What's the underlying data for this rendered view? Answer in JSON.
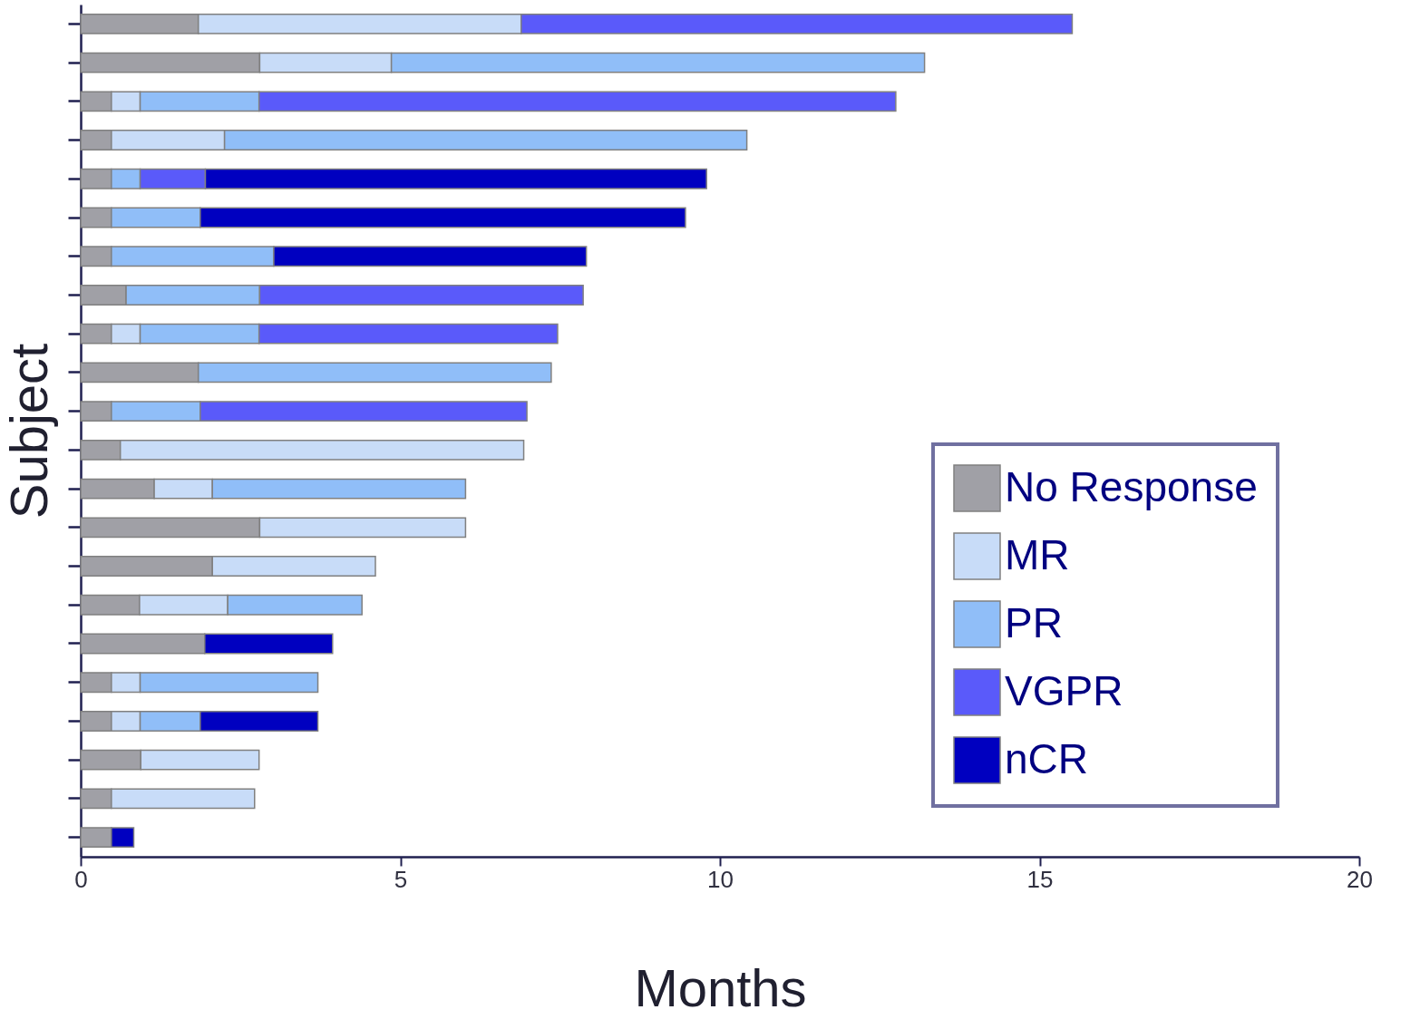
{
  "chart_data": {
    "type": "bar",
    "orientation": "horizontal",
    "stacked": true,
    "xlabel": "Months",
    "ylabel": "Subject",
    "categories": [
      null,
      null,
      null,
      null,
      null,
      null,
      null,
      null,
      null,
      null,
      null,
      null,
      null,
      null,
      null,
      null,
      null,
      null,
      null,
      null,
      null,
      null
    ],
    "series": [
      {
        "name": "No Response",
        "color": "#a0a0a6",
        "values": [
          1.84,
          2.8,
          0.48,
          0.48,
          0.48,
          0.48,
          0.48,
          0.71,
          0.48,
          1.84,
          0.48,
          0.62,
          1.15,
          2.8,
          2.06,
          0.92,
          1.94,
          0.48,
          0.48,
          0.94,
          0.48,
          0.48
        ]
      },
      {
        "name": "MR",
        "color": "#c8dcf8",
        "values": [
          5.05,
          2.06,
          0.45,
          1.77,
          null,
          null,
          null,
          null,
          0.45,
          null,
          null,
          6.31,
          0.91,
          3.22,
          2.55,
          1.38,
          null,
          0.45,
          0.45,
          1.85,
          2.24,
          null
        ]
      },
      {
        "name": "PR",
        "color": "#90bef8",
        "values": [
          null,
          8.34,
          1.86,
          8.17,
          0.45,
          1.39,
          2.54,
          2.09,
          1.86,
          5.52,
          1.39,
          null,
          3.96,
          null,
          null,
          2.1,
          null,
          2.78,
          0.94,
          null,
          null,
          null
        ]
      },
      {
        "name": "VGPR",
        "color": "#5a5afa",
        "values": [
          8.62,
          null,
          9.96,
          null,
          1.02,
          null,
          null,
          5.06,
          4.67,
          null,
          5.11,
          null,
          null,
          null,
          null,
          null,
          null,
          null,
          null,
          null,
          null,
          null
        ]
      },
      {
        "name": "nCR",
        "color": "#0000c0",
        "values": [
          null,
          null,
          null,
          null,
          7.84,
          7.59,
          4.89,
          null,
          null,
          null,
          null,
          null,
          null,
          null,
          null,
          null,
          2.0,
          null,
          1.84,
          null,
          null,
          0.35
        ]
      }
    ],
    "xlim": [
      0,
      20
    ],
    "xticks": [
      0,
      5,
      10,
      15,
      20
    ],
    "grid": false,
    "legend": "bottom right"
  }
}
